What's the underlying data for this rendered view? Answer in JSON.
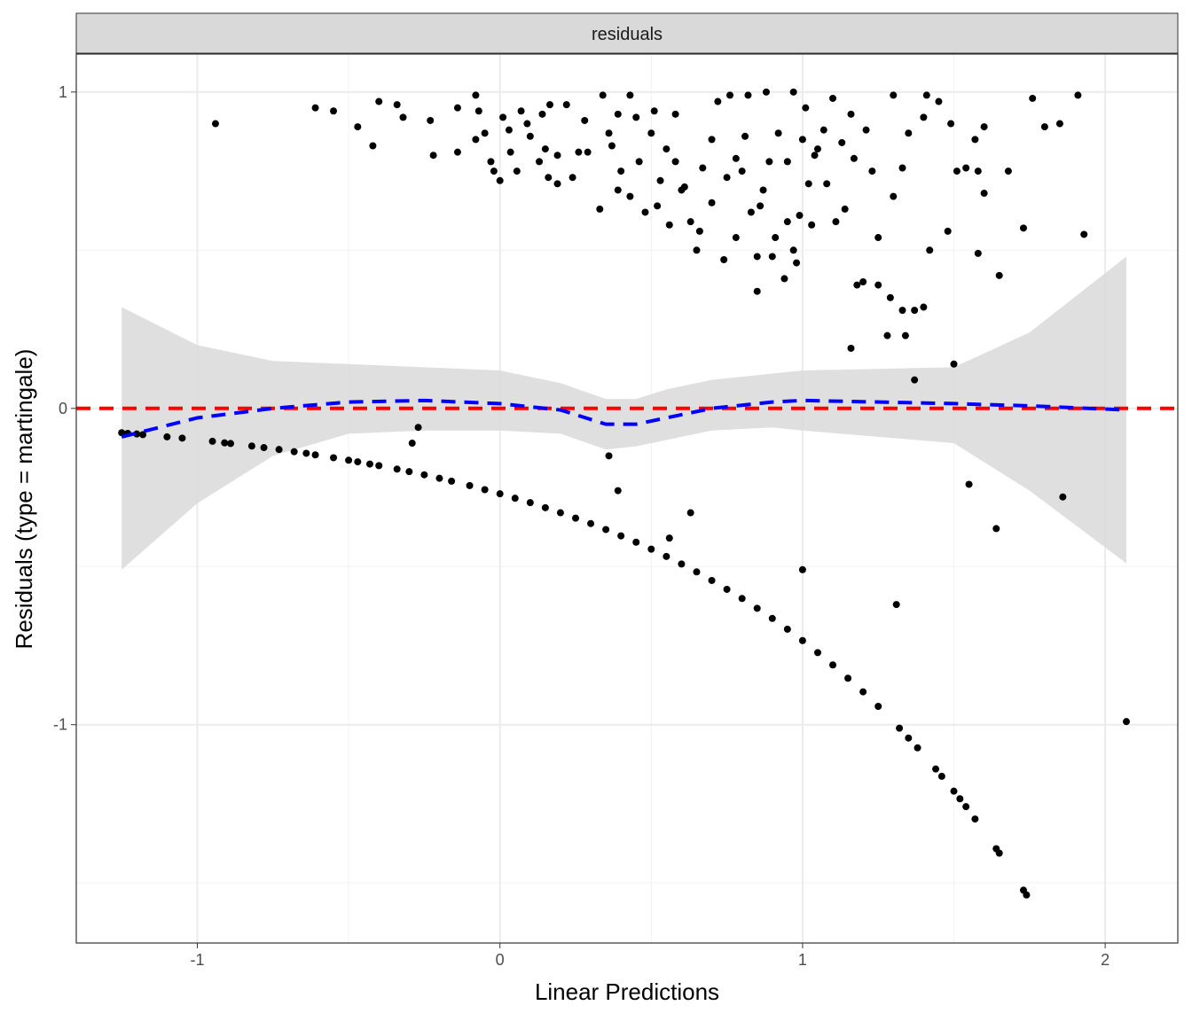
{
  "chart_data": {
    "type": "scatter",
    "strip_label": "residuals",
    "xlabel": "Linear Predictions",
    "ylabel": "Residuals (type = martingale)",
    "xlim": [
      -1.4,
      2.24
    ],
    "ylim": [
      -1.69,
      1.12
    ],
    "x_ticks": [
      -1,
      0,
      1,
      2
    ],
    "x_tick_labels": [
      "-1",
      "0",
      "1",
      "2"
    ],
    "y_ticks": [
      -1,
      0,
      1
    ],
    "y_tick_labels": [
      "-1",
      "0",
      "1"
    ],
    "x_minor": [
      -0.5,
      0.5,
      1.5
    ],
    "y_minor": [
      -1.5,
      -0.5,
      0.5
    ],
    "grid": true,
    "reference_line": {
      "y": 0,
      "color": "#ff0000",
      "style": "dashed"
    },
    "smooth": {
      "color": "#0000ff",
      "style": "dashed",
      "band_color": "#d9d9d9",
      "x": [
        -1.25,
        -1.0,
        -0.75,
        -0.5,
        -0.25,
        0,
        0.2,
        0.35,
        0.45,
        0.55,
        0.7,
        0.9,
        1.0,
        1.5,
        1.75,
        2.07
      ],
      "y": [
        -0.09,
        -0.03,
        0.0,
        0.02,
        0.025,
        0.015,
        -0.005,
        -0.05,
        -0.05,
        -0.03,
        0.0,
        0.02,
        0.025,
        0.015,
        0.008,
        -0.005
      ],
      "upper": [
        0.32,
        0.2,
        0.15,
        0.14,
        0.13,
        0.12,
        0.08,
        0.03,
        0.03,
        0.06,
        0.09,
        0.11,
        0.12,
        0.13,
        0.24,
        0.48
      ],
      "lower": [
        -0.51,
        -0.3,
        -0.15,
        -0.08,
        -0.07,
        -0.07,
        -0.08,
        -0.13,
        -0.12,
        -0.1,
        -0.07,
        -0.06,
        -0.07,
        -0.11,
        -0.26,
        -0.49
      ]
    },
    "points": [
      [
        -0.94,
        0.9
      ],
      [
        -0.61,
        0.95
      ],
      [
        -0.55,
        0.94
      ],
      [
        -0.47,
        0.89
      ],
      [
        -0.42,
        0.83
      ],
      [
        -0.4,
        0.97
      ],
      [
        -0.34,
        0.96
      ],
      [
        -0.32,
        0.92
      ],
      [
        -0.23,
        0.91
      ],
      [
        -0.22,
        0.8
      ],
      [
        -0.14,
        0.95
      ],
      [
        -0.14,
        0.81
      ],
      [
        -0.08,
        0.99
      ],
      [
        -0.07,
        0.94
      ],
      [
        -0.05,
        0.87
      ],
      [
        -0.02,
        0.75
      ],
      [
        0,
        0.72
      ],
      [
        0.01,
        0.92
      ],
      [
        0.035,
        0.81
      ],
      [
        0.056,
        0.75
      ],
      [
        0.07,
        0.94
      ],
      [
        0.1,
        0.86
      ],
      [
        0.13,
        0.78
      ],
      [
        0.14,
        0.93
      ],
      [
        0.165,
        0.96
      ],
      [
        0.19,
        0.71
      ],
      [
        0.22,
        0.96
      ],
      [
        0.24,
        0.73
      ],
      [
        0.26,
        0.81
      ],
      [
        0.28,
        0.91
      ],
      [
        0.33,
        0.63
      ],
      [
        0.34,
        0.99
      ],
      [
        0.37,
        0.83
      ],
      [
        0.39,
        0.69
      ],
      [
        0.43,
        0.99
      ],
      [
        0.45,
        0.92
      ],
      [
        0.48,
        0.62
      ],
      [
        0.5,
        0.87
      ],
      [
        0.51,
        0.94
      ],
      [
        0.53,
        0.72
      ],
      [
        0.56,
        0.58
      ],
      [
        0.58,
        0.78
      ],
      [
        0.6,
        0.69
      ],
      [
        0.63,
        0.59
      ],
      [
        0.65,
        0.5
      ],
      [
        0.67,
        0.76
      ],
      [
        0.7,
        0.65
      ],
      [
        0.72,
        0.97
      ],
      [
        0.74,
        0.47
      ],
      [
        0.76,
        0.99
      ],
      [
        0.78,
        0.79
      ],
      [
        0.8,
        0.75
      ],
      [
        0.82,
        0.99
      ],
      [
        0.83,
        0.62
      ],
      [
        0.85,
        0.48
      ],
      [
        0.85,
        0.37
      ],
      [
        0.87,
        0.69
      ],
      [
        0.88,
        1.0
      ],
      [
        0.9,
        0.48
      ],
      [
        0.92,
        0.87
      ],
      [
        0.94,
        0.41
      ],
      [
        0.95,
        0.59
      ],
      [
        0.97,
        1.0
      ],
      [
        0.98,
        0.46
      ],
      [
        0.99,
        0.61
      ],
      [
        1.01,
        0.95
      ],
      [
        1.02,
        0.71
      ],
      [
        1.04,
        0.8
      ],
      [
        1.05,
        0.82
      ],
      [
        1.08,
        0.71
      ],
      [
        1.1,
        0.98
      ],
      [
        1.11,
        0.59
      ],
      [
        1.13,
        0.84
      ],
      [
        1.14,
        0.63
      ],
      [
        1.16,
        0.93
      ],
      [
        1.16,
        0.19
      ],
      [
        1.17,
        0.79
      ],
      [
        1.18,
        0.39
      ],
      [
        1.2,
        0.4
      ],
      [
        1.21,
        0.88
      ],
      [
        1.23,
        0.75
      ],
      [
        1.25,
        0.54
      ],
      [
        1.25,
        0.39
      ],
      [
        1.28,
        0.23
      ],
      [
        1.29,
        0.35
      ],
      [
        1.3,
        0.99
      ],
      [
        1.3,
        0.67
      ],
      [
        1.33,
        0.31
      ],
      [
        1.33,
        0.76
      ],
      [
        1.34,
        0.23
      ],
      [
        1.35,
        0.87
      ],
      [
        1.37,
        0.31
      ],
      [
        1.4,
        0.92
      ],
      [
        1.4,
        0.32
      ],
      [
        1.41,
        0.99
      ],
      [
        1.42,
        0.5
      ],
      [
        1.45,
        0.97
      ],
      [
        1.48,
        0.56
      ],
      [
        1.49,
        0.9
      ],
      [
        1.5,
        0.14
      ],
      [
        1.51,
        0.75
      ],
      [
        1.54,
        0.76
      ],
      [
        1.57,
        0.85
      ],
      [
        1.58,
        0.49
      ],
      [
        1.58,
        0.75
      ],
      [
        1.6,
        0.68
      ],
      [
        1.6,
        0.89
      ],
      [
        1.65,
        0.42
      ],
      [
        1.68,
        0.75
      ],
      [
        1.73,
        0.57
      ],
      [
        1.76,
        0.98
      ],
      [
        1.8,
        0.89
      ],
      [
        1.85,
        0.9
      ],
      [
        1.91,
        0.99
      ],
      [
        1.93,
        0.55
      ],
      [
        0.39,
        0.93
      ],
      [
        0.4,
        0.75
      ],
      [
        0.43,
        0.67
      ],
      [
        0.46,
        0.78
      ],
      [
        0.52,
        0.64
      ],
      [
        0.55,
        0.82
      ],
      [
        0.58,
        0.93
      ],
      [
        0.61,
        0.7
      ],
      [
        0.66,
        0.56
      ],
      [
        0.7,
        0.85
      ],
      [
        0.75,
        0.73
      ],
      [
        0.78,
        0.54
      ],
      [
        0.81,
        0.86
      ],
      [
        0.86,
        0.64
      ],
      [
        0.89,
        0.78
      ],
      [
        0.91,
        0.54
      ],
      [
        0.95,
        0.78
      ],
      [
        0.97,
        0.5
      ],
      [
        1.0,
        0.85
      ],
      [
        1.03,
        0.58
      ],
      [
        1.07,
        0.88
      ],
      [
        -0.08,
        0.85
      ],
      [
        -0.03,
        0.78
      ],
      [
        0.03,
        0.88
      ],
      [
        0.09,
        0.9
      ],
      [
        0.15,
        0.82
      ],
      [
        0.19,
        0.8
      ],
      [
        0.29,
        0.81
      ],
      [
        0.36,
        0.87
      ],
      [
        0.16,
        0.73
      ],
      [
        -0.27,
        -0.06
      ],
      [
        -0.29,
        -0.11
      ],
      [
        0.36,
        -0.15
      ],
      [
        0.39,
        -0.26
      ],
      [
        0.56,
        -0.41
      ],
      [
        0.63,
        -0.33
      ],
      [
        1.0,
        -0.51
      ],
      [
        1.31,
        -0.62
      ],
      [
        1.37,
        0.09
      ],
      [
        1.55,
        -0.24
      ],
      [
        1.64,
        -0.38
      ],
      [
        1.86,
        -0.28
      ],
      [
        2.07,
        -0.99
      ],
      [
        -1.25,
        -0.077
      ],
      [
        -1.23,
        -0.079
      ],
      [
        -1.2,
        -0.081
      ],
      [
        -1.18,
        -0.083
      ],
      [
        -1.1,
        -0.09
      ],
      [
        -1.05,
        -0.094
      ],
      [
        -0.95,
        -0.104
      ],
      [
        -0.91,
        -0.109
      ],
      [
        -0.89,
        -0.111
      ],
      [
        -0.82,
        -0.119
      ],
      [
        -0.78,
        -0.124
      ],
      [
        -0.73,
        -0.13
      ],
      [
        -0.68,
        -0.137
      ],
      [
        -0.64,
        -0.142
      ],
      [
        -0.61,
        -0.147
      ],
      [
        -0.55,
        -0.156
      ],
      [
        -0.5,
        -0.164
      ],
      [
        -0.47,
        -0.169
      ],
      [
        -0.43,
        -0.176
      ],
      [
        -0.4,
        -0.181
      ],
      [
        -0.34,
        -0.192
      ],
      [
        -0.3,
        -0.2
      ],
      [
        -0.25,
        -0.21
      ],
      [
        -0.2,
        -0.221
      ],
      [
        -0.16,
        -0.23
      ],
      [
        -0.1,
        -0.244
      ],
      [
        -0.05,
        -0.257
      ],
      [
        0,
        -0.27
      ],
      [
        0.05,
        -0.284
      ],
      [
        0.1,
        -0.298
      ],
      [
        0.15,
        -0.314
      ],
      [
        0.2,
        -0.33
      ],
      [
        0.25,
        -0.347
      ],
      [
        0.3,
        -0.364
      ],
      [
        0.35,
        -0.383
      ],
      [
        0.4,
        -0.403
      ],
      [
        0.45,
        -0.423
      ],
      [
        0.5,
        -0.445
      ],
      [
        0.55,
        -0.468
      ],
      [
        0.6,
        -0.492
      ],
      [
        0.65,
        -0.517
      ],
      [
        0.7,
        -0.544
      ],
      [
        0.75,
        -0.572
      ],
      [
        0.8,
        -0.601
      ],
      [
        0.85,
        -0.632
      ],
      [
        0.9,
        -0.664
      ],
      [
        0.95,
        -0.698
      ],
      [
        1.0,
        -0.734
      ],
      [
        1.05,
        -0.772
      ],
      [
        1.1,
        -0.811
      ],
      [
        1.15,
        -0.853
      ],
      [
        1.2,
        -0.896
      ],
      [
        1.25,
        -0.942
      ],
      [
        1.32,
        -1.011
      ],
      [
        1.35,
        -1.042
      ],
      [
        1.38,
        -1.073
      ],
      [
        1.44,
        -1.14
      ],
      [
        1.46,
        -1.163
      ],
      [
        1.5,
        -1.21
      ],
      [
        1.52,
        -1.234
      ],
      [
        1.54,
        -1.259
      ],
      [
        1.57,
        -1.298
      ],
      [
        1.64,
        -1.392
      ],
      [
        1.65,
        -1.406
      ],
      [
        1.73,
        -1.523
      ],
      [
        1.74,
        -1.538
      ]
    ]
  }
}
